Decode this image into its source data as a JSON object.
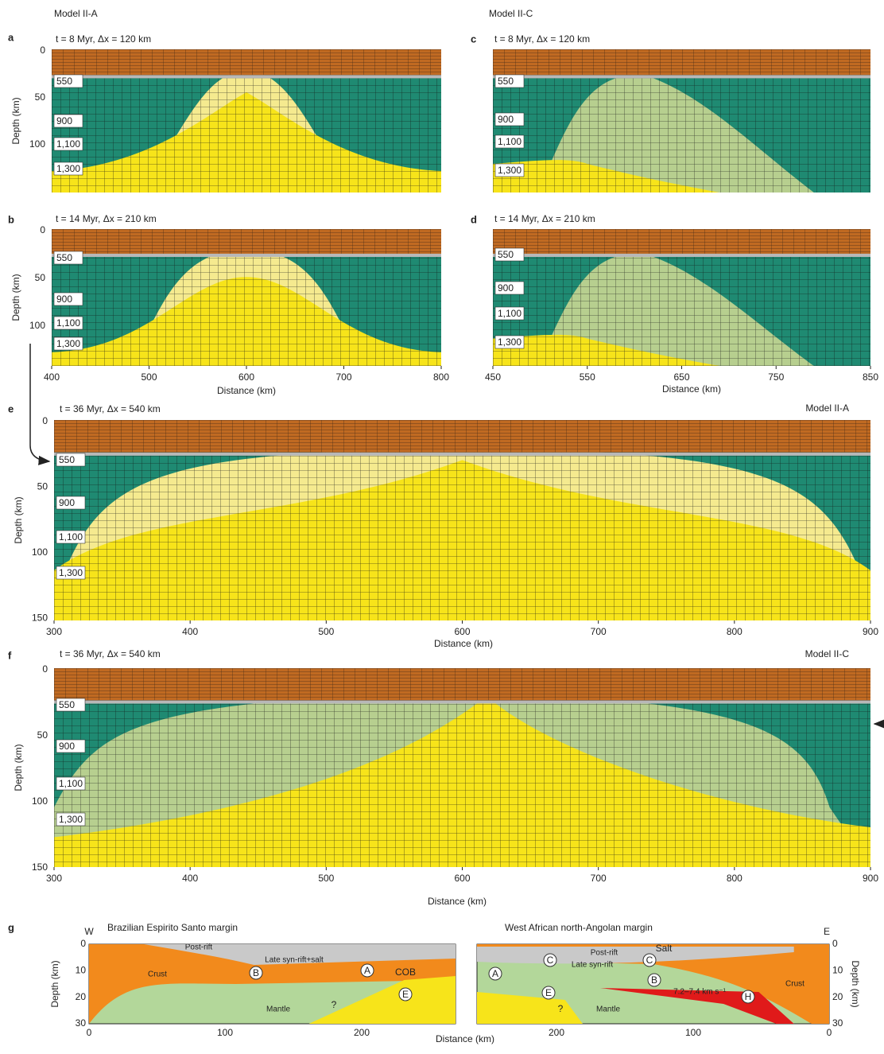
{
  "headers": [
    "Model II-A",
    "Model II-C"
  ],
  "panels": [
    {
      "label": "a",
      "subtitle": "t = 8 Myr, Δx = 120 km",
      "ylabel": "Depth (km)",
      "yticks": [
        "0",
        "50",
        "100"
      ],
      "isotherms": [
        "550",
        "900",
        "1,100",
        "1,300"
      ]
    },
    {
      "label": "c",
      "subtitle": "t = 8 Myr, Δx = 120 km",
      "isotherms": [
        "550",
        "900",
        "1,100",
        "1,300"
      ]
    },
    {
      "label": "b",
      "subtitle": "t = 14 Myr, Δx = 210 km",
      "ylabel": "Depth (km)",
      "yticks": [
        "0",
        "50",
        "100"
      ],
      "isotherms": [
        "550",
        "900",
        "1,100",
        "1,300"
      ],
      "xticks": [
        "400",
        "500",
        "600",
        "700",
        "800"
      ],
      "xlabel": "Distance (km)"
    },
    {
      "label": "d",
      "subtitle": "t = 14 Myr, Δx = 210 km",
      "isotherms": [
        "550",
        "900",
        "1,100",
        "1,300"
      ],
      "xticks": [
        "450",
        "550",
        "650",
        "750",
        "850"
      ],
      "xlabel": "Distance (km)"
    },
    {
      "label": "e",
      "subtitle": "t = 36 Myr, Δx = 540 km",
      "model": "Model II-A",
      "ylabel": "Depth (km)",
      "yticks": [
        "0",
        "50",
        "100",
        "150"
      ],
      "isotherms": [
        "550",
        "900",
        "1,100",
        "1,300"
      ],
      "xticks": [
        "300",
        "400",
        "500",
        "600",
        "700",
        "800",
        "900"
      ],
      "xlabel": "Distance (km)"
    },
    {
      "label": "f",
      "subtitle": "t = 36 Myr, Δx = 540 km",
      "model": "Model II-C",
      "ylabel": "Depth (km)",
      "yticks": [
        "0",
        "50",
        "100",
        "150"
      ],
      "isotherms": [
        "550",
        "900",
        "1,100",
        "1,300"
      ],
      "xticks": [
        "300",
        "400",
        "500",
        "600",
        "700",
        "800",
        "900"
      ],
      "xlabel": "Distance (km)"
    }
  ],
  "panel_g": {
    "label": "g",
    "xlabel": "Distance (km)",
    "left": {
      "title": "Brazilian Espirito Santo margin",
      "side": "W",
      "ylabel": "Depth (km)",
      "yticks": [
        "0",
        "10",
        "20",
        "30"
      ],
      "xticks": [
        "0",
        "100",
        "200"
      ],
      "labels": [
        "Post-rift",
        "Late syn-rift+salt",
        "Crust",
        "B",
        "A",
        "COB",
        "Mantle",
        "?",
        "E"
      ]
    },
    "right": {
      "title": "West African north-Angolan margin",
      "side": "E",
      "ylabel": "Depth (km)",
      "yticks": [
        "0",
        "10",
        "20",
        "30"
      ],
      "xticks": [
        "200",
        "100",
        "0"
      ],
      "labels": [
        "Post-rift",
        "Salt",
        "Late syn-rift",
        "C",
        "C",
        "A",
        "B",
        "Crust",
        "E",
        "H",
        "Mantle",
        "?",
        "7.2–7.4 km s⁻¹"
      ]
    }
  }
}
